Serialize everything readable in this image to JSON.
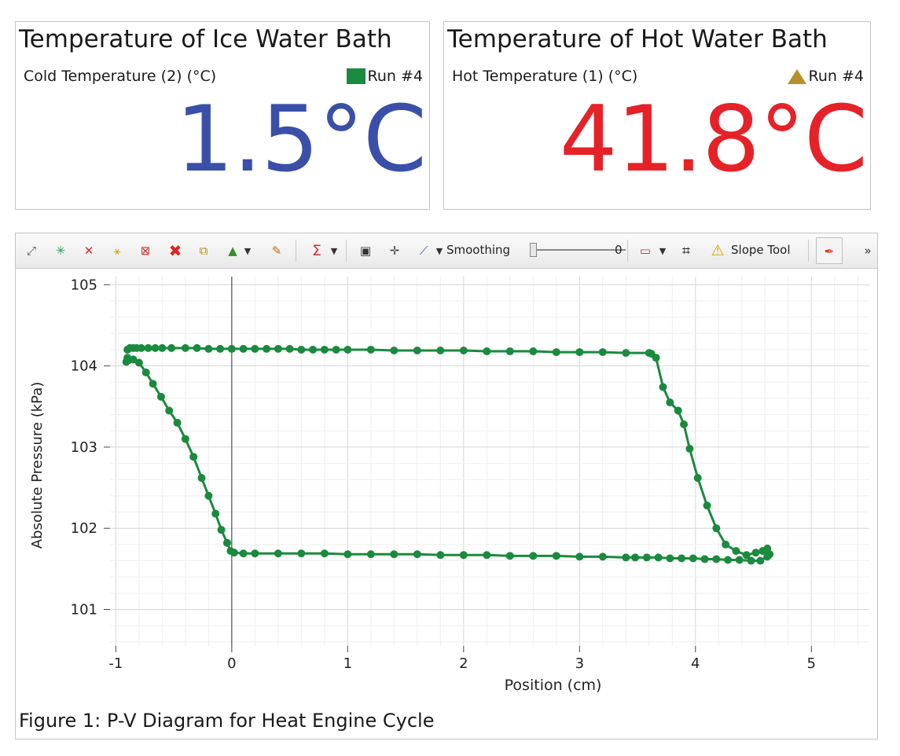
{
  "meters": {
    "cold": {
      "title": "Temperature of Ice Water Bath",
      "sensor": "Cold Temperature (2) (°C)",
      "run": "Run #4",
      "value": "1.5°C",
      "value_color": "#3a4fa8",
      "marker_color": "#1a8a3e",
      "marker_shape": "square"
    },
    "hot": {
      "title": "Temperature of Hot Water Bath",
      "sensor": "Hot Temperature (1) (°C)",
      "run": "Run #4",
      "value": "41.8°C",
      "value_color": "#e62228",
      "marker_color": "#b8902a",
      "marker_shape": "triangle"
    }
  },
  "toolbar": {
    "items": [
      {
        "name": "scale-to-fit-icon",
        "glyph": "⤢"
      },
      {
        "name": "add-coordinates-icon",
        "glyph": "✳"
      },
      {
        "name": "remove-coordinates-icon",
        "glyph": "✕"
      },
      {
        "name": "highlight-range-icon",
        "glyph": "⚹"
      },
      {
        "name": "clear-range-icon",
        "glyph": "⊠"
      },
      {
        "name": "delete-icon",
        "glyph": "✖"
      },
      {
        "name": "copy-icon",
        "glyph": "⧉"
      },
      {
        "name": "color-palette-icon",
        "glyph": "▲"
      },
      {
        "name": "annotation-pen-icon",
        "glyph": "✎"
      },
      {
        "name": "statistics-sigma-icon",
        "glyph": "Σ"
      },
      {
        "name": "camera-snapshot-icon",
        "glyph": "▣"
      },
      {
        "name": "crosshair-coordinates-icon",
        "glyph": "✛"
      },
      {
        "name": "curve-fit-icon",
        "glyph": "⟋"
      },
      {
        "name": "graph-layout-icon",
        "glyph": "▭"
      },
      {
        "name": "axis-scale-icon",
        "glyph": "⌗"
      },
      {
        "name": "warning-icon",
        "glyph": "⚠"
      },
      {
        "name": "pin-icon",
        "glyph": "✒"
      },
      {
        "name": "overflow-chevron-icon",
        "glyph": "»"
      }
    ],
    "smoothing_label": "Smoothing",
    "smoothing_value": "0",
    "slope_tool_label": "Slope Tool"
  },
  "caption": "Figure 1: P-V Diagram for Heat Engine Cycle",
  "chart_data": {
    "type": "line",
    "xlabel": "Position (cm)",
    "ylabel": "Absolute Pressure (kPa)",
    "xlim": [
      -1.05,
      5.5
    ],
    "ylim": [
      100.55,
      105.1
    ],
    "x_ticks": [
      -1,
      0,
      1,
      2,
      3,
      4,
      5
    ],
    "y_ticks": [
      101,
      102,
      103,
      104,
      105
    ],
    "grid": true,
    "series_color": "#1a8a3e",
    "series": [
      {
        "name": "Run #4",
        "x": [
          -0.9,
          -0.88,
          -0.85,
          -0.82,
          -0.78,
          -0.72,
          -0.66,
          -0.6,
          -0.52,
          -0.4,
          -0.3,
          -0.2,
          -0.1,
          0,
          0.1,
          0.2,
          0.3,
          0.4,
          0.5,
          0.6,
          0.7,
          0.8,
          0.9,
          1.0,
          1.2,
          1.4,
          1.6,
          1.8,
          2.0,
          2.2,
          2.4,
          2.6,
          2.8,
          3.0,
          3.2,
          3.4,
          3.6,
          3.62,
          3.66,
          3.72,
          3.78,
          3.85,
          3.9,
          3.95,
          4.02,
          4.1,
          4.18,
          4.26,
          4.35,
          4.44,
          4.52,
          4.58,
          4.62,
          4.64,
          4.62,
          4.56,
          4.48,
          4.38,
          4.28,
          4.18,
          4.08,
          3.98,
          3.88,
          3.78,
          3.68,
          3.58,
          3.48,
          3.4,
          3.2,
          3.0,
          2.8,
          2.6,
          2.4,
          2.2,
          2.0,
          1.8,
          1.6,
          1.4,
          1.2,
          1.0,
          0.8,
          0.6,
          0.4,
          0.2,
          0.1,
          0.02,
          -0.01,
          -0.04,
          -0.09,
          -0.14,
          -0.2,
          -0.26,
          -0.33,
          -0.4,
          -0.47,
          -0.54,
          -0.61,
          -0.68,
          -0.74,
          -0.8,
          -0.85,
          -0.89,
          -0.91,
          -0.9
        ],
        "y": [
          104.2,
          104.22,
          104.22,
          104.22,
          104.22,
          104.22,
          104.22,
          104.22,
          104.22,
          104.22,
          104.22,
          104.21,
          104.21,
          104.21,
          104.21,
          104.21,
          104.21,
          104.21,
          104.21,
          104.2,
          104.2,
          104.2,
          104.2,
          104.2,
          104.2,
          104.19,
          104.19,
          104.19,
          104.19,
          104.18,
          104.18,
          104.18,
          104.17,
          104.17,
          104.17,
          104.16,
          104.16,
          104.15,
          104.1,
          103.74,
          103.55,
          103.45,
          103.28,
          102.98,
          102.62,
          102.28,
          102.0,
          101.8,
          101.72,
          101.67,
          101.7,
          101.72,
          101.75,
          101.68,
          101.65,
          101.6,
          101.6,
          101.61,
          101.61,
          101.62,
          101.62,
          101.63,
          101.63,
          101.63,
          101.64,
          101.64,
          101.64,
          101.64,
          101.65,
          101.65,
          101.66,
          101.66,
          101.66,
          101.67,
          101.67,
          101.67,
          101.68,
          101.68,
          101.68,
          101.68,
          101.69,
          101.69,
          101.69,
          101.69,
          101.69,
          101.7,
          101.72,
          101.82,
          101.98,
          102.18,
          102.4,
          102.62,
          102.88,
          103.1,
          103.3,
          103.45,
          103.62,
          103.78,
          103.92,
          104.04,
          104.08,
          104.07,
          104.05,
          104.1
        ]
      }
    ]
  }
}
